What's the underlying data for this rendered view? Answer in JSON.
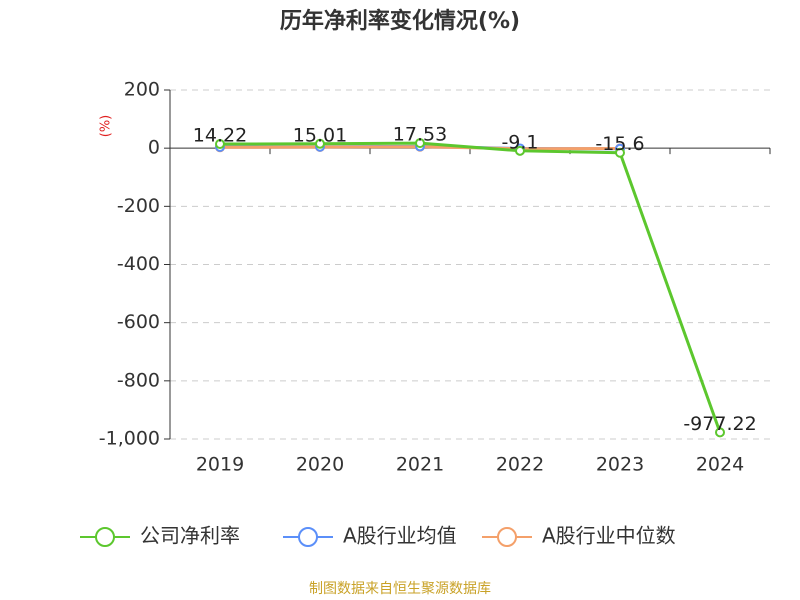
{
  "chart_data": {
    "type": "line",
    "title": "历年净利率变化情况(%)",
    "y_axis_label": "(%)",
    "categories": [
      "2019",
      "2020",
      "2021",
      "2022",
      "2023",
      "2024"
    ],
    "series": [
      {
        "name": "公司净利率",
        "color": "#5cc72e",
        "values": [
          14.22,
          15.01,
          17.53,
          -9.1,
          -15.6,
          -977.22
        ],
        "show_labels": true
      },
      {
        "name": "A股行业均值",
        "color": "#5b8ff9",
        "values": [
          4,
          5,
          6,
          -1,
          -2,
          null
        ],
        "show_labels": false
      },
      {
        "name": "A股行业中位数",
        "color": "#f4a06a",
        "values": [
          3,
          4,
          5,
          -2,
          -1,
          null
        ],
        "show_labels": false
      }
    ],
    "ylim": [
      -1000,
      200
    ],
    "yticks": [
      200,
      0,
      -200,
      -400,
      -600,
      -800,
      {
        "value": -1000,
        "label": "-1,000"
      }
    ],
    "grid": true,
    "source": "制图数据来自恒生聚源数据库"
  }
}
